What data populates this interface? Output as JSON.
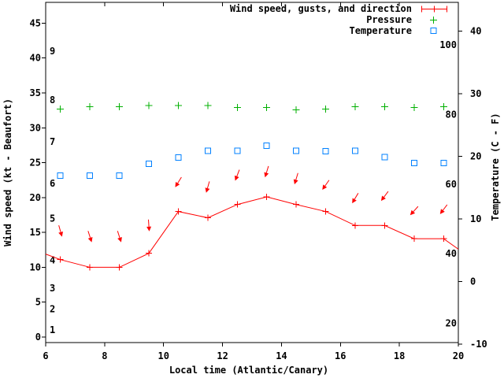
{
  "chart_data": {
    "type": "line",
    "title": "",
    "xlabel": "Local time (Atlantic/Canary)",
    "ylabel_left": "Wind speed (kt - Beaufort)",
    "ylabel_right": "Temperature (C - F)",
    "grid": false,
    "legend_position": "top-right-inside",
    "x_axis": {
      "range": [
        6,
        20
      ],
      "ticks": [
        6,
        8,
        10,
        12,
        14,
        16,
        18,
        20
      ]
    },
    "left_axis": {
      "units": "kt",
      "range": [
        -0.8,
        48.0
      ],
      "ticks": [
        0,
        5,
        10,
        15,
        20,
        25,
        30,
        35,
        40,
        45
      ],
      "beaufort_labels": [
        {
          "label": "1",
          "kt": 1
        },
        {
          "label": "2",
          "kt": 4
        },
        {
          "label": "3",
          "kt": 7
        },
        {
          "label": "4",
          "kt": 11
        },
        {
          "label": "5",
          "kt": 17
        },
        {
          "label": "6",
          "kt": 22
        },
        {
          "label": "7",
          "kt": 28
        },
        {
          "label": "8",
          "kt": 34
        },
        {
          "label": "9",
          "kt": 41
        }
      ]
    },
    "right_axis": {
      "units_outer": "C",
      "units_inner": "F",
      "range_c": [
        -10.1,
        44.6
      ],
      "ticks_c": [
        -10,
        0,
        10,
        20,
        30,
        40
      ],
      "fahrenheit_labels": [
        20,
        40,
        60,
        80,
        100
      ]
    },
    "x_hours": [
      6.5,
      7.5,
      8.5,
      9.5,
      10.5,
      11.5,
      12.5,
      13.5,
      14.5,
      15.5,
      16.5,
      17.5,
      18.5,
      19.5
    ],
    "series": [
      {
        "name": "Wind speed, gusts, and direction",
        "color": "#ff0000",
        "axis": "left",
        "marker": "plus",
        "style": "line-with-direction-arrows",
        "values_kt": [
          11.1,
          10.0,
          10.0,
          12.0,
          18.0,
          17.1,
          19.0,
          20.1,
          19.0,
          18.0,
          16.0,
          16.0,
          14.1,
          14.1
        ],
        "edge_values_kt": {
          "at_x6": 11.9,
          "at_x20": 12.6
        },
        "gusts_kt": [
          15.2,
          14.4,
          14.4,
          16.0,
          22.2,
          21.5,
          23.2,
          23.7,
          22.7,
          21.8,
          19.9,
          20.2,
          18.1,
          18.3
        ],
        "arrow_bearings_deg": [
          164,
          162,
          162,
          176,
          212,
          196,
          201,
          197,
          197,
          215,
          211,
          217,
          222,
          217
        ]
      },
      {
        "name": "Pressure",
        "color": "#00b000",
        "axis": "left-unlabeled-scale",
        "marker": "plus",
        "style": "points",
        "values_left_axis_units": [
          32.7,
          33.0,
          33.0,
          33.2,
          33.2,
          33.2,
          32.9,
          32.9,
          32.6,
          32.7,
          33.0,
          33.0,
          32.9,
          33.0
        ]
      },
      {
        "name": "Temperature",
        "color": "#0080ff",
        "axis": "right",
        "marker": "open-square",
        "style": "points",
        "values_c": [
          16.9,
          16.9,
          16.9,
          18.8,
          19.8,
          20.9,
          20.9,
          21.7,
          20.9,
          20.8,
          20.9,
          19.9,
          18.9,
          18.9
        ]
      }
    ]
  },
  "colors": {
    "background": "#ffffff",
    "axis": "#000000",
    "wind": "#ff0000",
    "pressure": "#00b000",
    "temperature": "#0080ff"
  }
}
